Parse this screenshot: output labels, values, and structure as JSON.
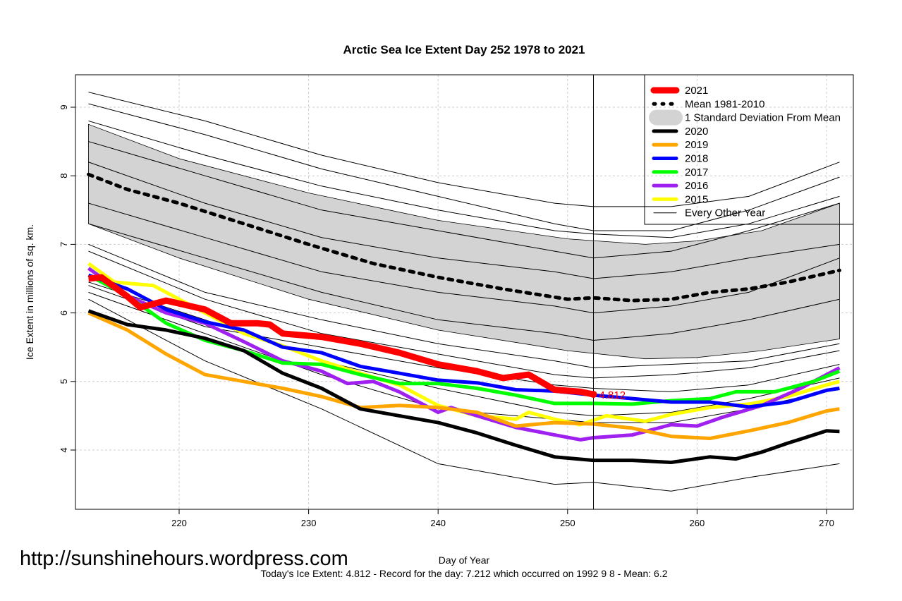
{
  "chart_data": {
    "type": "line",
    "title": "Arctic Sea Ice Extent Day 252 1978 to 2021",
    "xlabel": "Day of Year",
    "ylabel": "Ice Extent in millions of sq. km.",
    "xlim": [
      212,
      272
    ],
    "ylim": [
      3.1,
      9.5
    ],
    "xticks": [
      220,
      230,
      240,
      250,
      260,
      270
    ],
    "yticks": [
      4,
      5,
      6,
      7,
      8,
      9
    ],
    "grid": true,
    "legend_position": "top-right",
    "current_day": 252,
    "current_value_label": "4.812",
    "subtitle": "Today's Ice Extent: 4.812  - Record for the day: 7.212 which occurred on 1992 9 8  - Mean: 6.2",
    "watermark": "http://sunshinehours.wordpress.com",
    "sd_band": {
      "name": "1 Standard Deviation From Mean",
      "color": "#d3d3d3",
      "x": [
        213,
        220,
        230,
        240,
        250,
        256,
        260,
        265,
        271
      ],
      "upper": [
        8.75,
        8.25,
        7.75,
        7.35,
        7.08,
        7.0,
        7.05,
        7.2,
        7.6
      ],
      "lower": [
        7.3,
        6.8,
        6.2,
        5.75,
        5.45,
        5.33,
        5.35,
        5.45,
        5.62
      ]
    },
    "mean": {
      "name": "Mean 1981-2010",
      "color": "#000000",
      "x": [
        213,
        216,
        220,
        225,
        230,
        235,
        240,
        245,
        250,
        252,
        255,
        258,
        261,
        264,
        267,
        271
      ],
      "y": [
        8.02,
        7.8,
        7.6,
        7.3,
        7.0,
        6.72,
        6.52,
        6.35,
        6.2,
        6.22,
        6.18,
        6.2,
        6.3,
        6.35,
        6.45,
        6.62
      ]
    },
    "other_years": {
      "name": "Every Other Year",
      "color": "#000000",
      "x": [
        213,
        222,
        231,
        240,
        249,
        252,
        258,
        264,
        271
      ],
      "lines": [
        [
          9.22,
          8.8,
          8.3,
          7.9,
          7.6,
          7.55,
          7.55,
          7.7,
          8.2
        ],
        [
          9.05,
          8.6,
          8.1,
          7.7,
          7.3,
          7.2,
          7.2,
          7.5,
          7.98
        ],
        [
          8.8,
          8.3,
          7.85,
          7.5,
          7.2,
          7.15,
          7.1,
          7.3,
          7.7
        ],
        [
          8.5,
          8.0,
          7.5,
          7.2,
          6.9,
          6.8,
          6.9,
          7.2,
          7.6
        ],
        [
          8.2,
          7.6,
          7.1,
          6.8,
          6.6,
          6.5,
          6.6,
          6.8,
          7.0
        ],
        [
          7.6,
          7.1,
          6.6,
          6.3,
          6.1,
          6.0,
          6.1,
          6.3,
          6.8
        ],
        [
          7.3,
          6.8,
          6.3,
          5.9,
          5.7,
          5.6,
          5.7,
          5.9,
          6.2
        ],
        [
          7.0,
          6.3,
          5.9,
          5.55,
          5.3,
          5.2,
          5.25,
          5.3,
          5.55
        ],
        [
          6.9,
          6.2,
          5.7,
          5.4,
          5.1,
          5.05,
          5.1,
          5.2,
          5.45
        ],
        [
          6.4,
          5.8,
          5.5,
          5.2,
          4.95,
          4.9,
          4.85,
          4.95,
          5.25
        ],
        [
          6.45,
          5.9,
          5.3,
          4.9,
          4.55,
          4.5,
          4.55,
          4.75,
          5.05
        ],
        [
          6.3,
          5.7,
          5.1,
          4.6,
          4.45,
          4.4,
          4.4,
          4.6,
          4.9
        ],
        [
          6.2,
          5.3,
          4.6,
          3.8,
          3.5,
          3.53,
          3.4,
          3.6,
          3.8
        ]
      ]
    },
    "series": [
      {
        "name": "2021",
        "color": "#ff0000",
        "width": 9,
        "x": [
          213,
          214,
          216,
          217,
          219,
          222,
          224,
          226,
          227,
          228,
          231,
          234,
          237,
          240,
          243,
          245,
          247,
          249,
          251,
          252
        ],
        "y": [
          6.5,
          6.52,
          6.24,
          6.08,
          6.18,
          6.05,
          5.85,
          5.85,
          5.83,
          5.7,
          5.65,
          5.55,
          5.42,
          5.25,
          5.15,
          5.05,
          5.1,
          4.88,
          4.85,
          4.812
        ]
      },
      {
        "name": "2020",
        "color": "#000000",
        "width": 5,
        "x": [
          213,
          216,
          219,
          222,
          225,
          228,
          231,
          234,
          237,
          240,
          243,
          246,
          249,
          252,
          255,
          258,
          261,
          263,
          265,
          267,
          270,
          271
        ],
        "y": [
          6.03,
          5.83,
          5.75,
          5.63,
          5.45,
          5.12,
          4.9,
          4.6,
          4.5,
          4.4,
          4.25,
          4.07,
          3.9,
          3.85,
          3.85,
          3.82,
          3.9,
          3.87,
          3.97,
          4.1,
          4.28,
          4.27
        ]
      },
      {
        "name": "2019",
        "color": "#ffa500",
        "width": 5,
        "x": [
          213,
          216,
          219,
          222,
          225,
          228,
          231,
          234,
          237,
          240,
          243,
          246,
          249,
          252,
          255,
          258,
          261,
          264,
          267,
          270,
          271
        ],
        "y": [
          6.0,
          5.75,
          5.4,
          5.1,
          5.0,
          4.9,
          4.78,
          4.62,
          4.65,
          4.62,
          4.55,
          4.35,
          4.4,
          4.38,
          4.32,
          4.2,
          4.17,
          4.28,
          4.4,
          4.57,
          4.6
        ]
      },
      {
        "name": "2018",
        "color": "#0000ff",
        "width": 5,
        "x": [
          213,
          216,
          219,
          222,
          225,
          228,
          231,
          234,
          237,
          240,
          243,
          246,
          249,
          252,
          255,
          258,
          261,
          264,
          267,
          270,
          271
        ],
        "y": [
          6.55,
          6.35,
          6.05,
          5.87,
          5.75,
          5.5,
          5.42,
          5.22,
          5.12,
          5.02,
          4.98,
          4.88,
          4.86,
          4.8,
          4.75,
          4.7,
          4.7,
          4.63,
          4.7,
          4.87,
          4.9
        ]
      },
      {
        "name": "2017",
        "color": "#00ff00",
        "width": 5,
        "x": [
          213,
          216,
          219,
          222,
          225,
          228,
          231,
          234,
          237,
          240,
          243,
          246,
          249,
          252,
          255,
          258,
          261,
          263,
          266,
          269,
          271
        ],
        "y": [
          6.55,
          6.25,
          5.85,
          5.6,
          5.45,
          5.27,
          5.25,
          5.1,
          4.97,
          4.97,
          4.9,
          4.8,
          4.68,
          4.68,
          4.67,
          4.72,
          4.75,
          4.85,
          4.85,
          5.0,
          5.15
        ]
      },
      {
        "name": "2016",
        "color": "#a020f0",
        "width": 5,
        "x": [
          213,
          216,
          219,
          222,
          225,
          228,
          231,
          233,
          235,
          237,
          240,
          241,
          243,
          246,
          249,
          251,
          252,
          255,
          258,
          260,
          262,
          265,
          268,
          270,
          271
        ],
        "y": [
          6.65,
          6.25,
          6.0,
          5.85,
          5.58,
          5.3,
          5.15,
          4.97,
          5.0,
          4.85,
          4.55,
          4.62,
          4.5,
          4.33,
          4.22,
          4.15,
          4.18,
          4.22,
          4.37,
          4.35,
          4.48,
          4.65,
          4.9,
          5.1,
          5.2
        ]
      },
      {
        "name": "2015",
        "color": "#ffff00",
        "width": 5,
        "x": [
          213,
          215,
          218,
          220,
          223,
          225,
          228,
          231,
          234,
          237,
          240,
          243,
          246,
          247,
          249,
          251,
          253,
          256,
          258,
          261,
          264,
          267,
          270,
          271
        ],
        "y": [
          6.72,
          6.45,
          6.4,
          6.2,
          5.9,
          5.7,
          5.52,
          5.3,
          5.12,
          4.95,
          4.65,
          4.5,
          4.45,
          4.55,
          4.45,
          4.37,
          4.5,
          4.42,
          4.52,
          4.62,
          4.67,
          4.78,
          4.95,
          5.0
        ]
      }
    ]
  }
}
